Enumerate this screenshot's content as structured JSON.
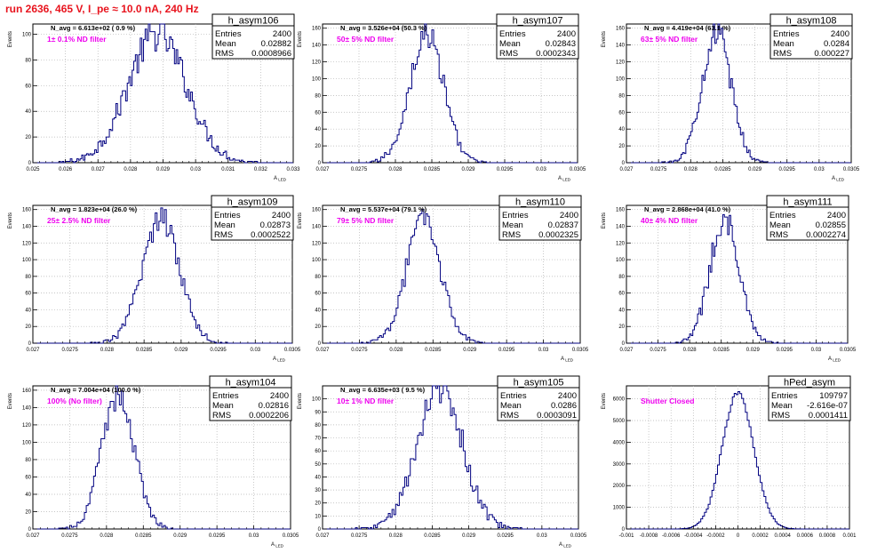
{
  "page_title": "run 2636,   465 V, I_pe ≈ 10.0 nA, 240 Hz",
  "colors": {
    "title": "#e8141e",
    "filter_label": "#ee00ee",
    "histogram": "#000080",
    "grid": "#b4b4b4"
  },
  "chart_data": [
    {
      "type": "bar",
      "name": "h_asym106",
      "title": "N_avg = 6.613e+02 ( 0.9 %)",
      "annotation": "1± 0.1% ND filter",
      "stats": {
        "entries_label": "Entries",
        "entries": "2400",
        "mean_label": "Mean",
        "mean": "0.02882",
        "rms_label": "RMS",
        "rms": "0.0008966"
      },
      "ylabel": "Events",
      "xlabel": "A_{LED}",
      "xlim": [
        0.025,
        0.033
      ],
      "ylim": [
        0,
        108
      ],
      "xticks": [
        "0.025",
        "0.026",
        "0.027",
        "0.028",
        "0.029",
        "0.03",
        "0.031",
        "0.032",
        "0.033"
      ],
      "yticks": [
        "0",
        "20",
        "40",
        "60",
        "80",
        "100"
      ],
      "mean": 0.02882,
      "rms": 0.0008966,
      "peak": 100,
      "bins": 160,
      "xrange": [
        0.025,
        0.033
      ]
    },
    {
      "type": "bar",
      "name": "h_asym107",
      "title": "N_avg = 3.526e+04 (50.3 %)",
      "annotation": "50± 5% ND filter",
      "stats": {
        "entries_label": "Entries",
        "entries": "2400",
        "mean_label": "Mean",
        "mean": "0.02843",
        "rms_label": "RMS",
        "rms": "0.0002343"
      },
      "ylabel": "Events",
      "xlabel": "A_{LED}",
      "xlim": [
        0.027,
        0.0305
      ],
      "ylim": [
        0,
        165
      ],
      "xticks": [
        "0.027",
        "0.0275",
        "0.028",
        "0.0285",
        "0.029",
        "0.0295",
        "0.03",
        "0.0305"
      ],
      "yticks": [
        "0",
        "20",
        "40",
        "60",
        "80",
        "100",
        "120",
        "140",
        "160"
      ],
      "mean": 0.02843,
      "rms": 0.0002343,
      "peak": 152,
      "bins": 140
    },
    {
      "type": "bar",
      "name": "h_asym108",
      "title": "N_avg = 4.419e+04 (63.1 %)",
      "annotation": "63± 5% ND filter",
      "stats": {
        "entries_label": "Entries",
        "entries": "2400",
        "mean_label": "Mean",
        "mean": "0.0284",
        "rms_label": "RMS",
        "rms": "0.000227"
      },
      "ylabel": "Events",
      "xlabel": "A_{LED}",
      "xlim": [
        0.027,
        0.0305
      ],
      "ylim": [
        0,
        165
      ],
      "xticks": [
        "0.027",
        "0.0275",
        "0.028",
        "0.0285",
        "0.029",
        "0.0295",
        "0.03",
        "0.0305"
      ],
      "yticks": [
        "0",
        "20",
        "40",
        "60",
        "80",
        "100",
        "120",
        "140",
        "160"
      ],
      "mean": 0.0284,
      "rms": 0.000227,
      "peak": 156,
      "bins": 140
    },
    {
      "type": "bar",
      "name": "h_asym109",
      "title": "N_avg = 1.823e+04 (26.0 %)",
      "annotation": "25± 2.5% ND filter",
      "stats": {
        "entries_label": "Entries",
        "entries": "2400",
        "mean_label": "Mean",
        "mean": "0.02873",
        "rms_label": "RMS",
        "rms": "0.0002522"
      },
      "ylabel": "Events",
      "xlabel": "A_{LED}",
      "xlim": [
        0.027,
        0.0305
      ],
      "ylim": [
        0,
        165
      ],
      "xticks": [
        "0.027",
        "0.0275",
        "0.028",
        "0.0285",
        "0.029",
        "0.0295",
        "0.03",
        "0.0305"
      ],
      "yticks": [
        "0",
        "20",
        "40",
        "60",
        "80",
        "100",
        "120",
        "140",
        "160"
      ],
      "mean": 0.02873,
      "rms": 0.0002522,
      "peak": 150,
      "bins": 140
    },
    {
      "type": "bar",
      "name": "h_asym110",
      "title": "N_avg = 5.537e+04 (79.1 %)",
      "annotation": "79± 5% ND filter",
      "stats": {
        "entries_label": "Entries",
        "entries": "2400",
        "mean_label": "Mean",
        "mean": "0.02837",
        "rms_label": "RMS",
        "rms": "0.0002325"
      },
      "ylabel": "Events",
      "xlabel": "A_{LED}",
      "xlim": [
        0.027,
        0.0305
      ],
      "ylim": [
        0,
        165
      ],
      "xticks": [
        "0.027",
        "0.0275",
        "0.028",
        "0.0285",
        "0.029",
        "0.0295",
        "0.03",
        "0.0305"
      ],
      "yticks": [
        "0",
        "20",
        "40",
        "60",
        "80",
        "100",
        "120",
        "140",
        "160"
      ],
      "mean": 0.02837,
      "rms": 0.0002325,
      "peak": 146,
      "bins": 140
    },
    {
      "type": "bar",
      "name": "h_asym111",
      "title": "N_avg = 2.868e+04 (41.0 %)",
      "annotation": "40± 4% ND filter",
      "stats": {
        "entries_label": "Entries",
        "entries": "2400",
        "mean_label": "Mean",
        "mean": "0.02855",
        "rms_label": "RMS",
        "rms": "0.0002274"
      },
      "ylabel": "Events",
      "xlabel": "A_{LED}",
      "xlim": [
        0.027,
        0.0305
      ],
      "ylim": [
        0,
        165
      ],
      "xticks": [
        "0.027",
        "0.0275",
        "0.028",
        "0.0285",
        "0.029",
        "0.0295",
        "0.03",
        "0.0305"
      ],
      "yticks": [
        "0",
        "20",
        "40",
        "60",
        "80",
        "100",
        "120",
        "140",
        "160"
      ],
      "mean": 0.02855,
      "rms": 0.0002274,
      "peak": 150,
      "bins": 140
    },
    {
      "type": "bar",
      "name": "h_asym104",
      "title": "N_avg = 7.004e+04 (100.0 %)",
      "annotation": "100% (No filter)",
      "stats": {
        "entries_label": "Entries",
        "entries": "2400",
        "mean_label": "Mean",
        "mean": "0.02816",
        "rms_label": "RMS",
        "rms": "0.0002206"
      },
      "ylabel": "Events",
      "xlabel": "A_{LED}",
      "xlim": [
        0.027,
        0.0305
      ],
      "ylim": [
        0,
        165
      ],
      "xticks": [
        "0.027",
        "0.0275",
        "0.028",
        "0.0285",
        "0.029",
        "0.0295",
        "0.03",
        "0.0305"
      ],
      "yticks": [
        "0",
        "20",
        "40",
        "60",
        "80",
        "100",
        "120",
        "140",
        "160"
      ],
      "mean": 0.02816,
      "rms": 0.0002206,
      "peak": 155,
      "bins": 140
    },
    {
      "type": "bar",
      "name": "h_asym105",
      "title": "N_avg = 6.635e+03 ( 9.5 %)",
      "annotation": "10± 1% ND filter",
      "stats": {
        "entries_label": "Entries",
        "entries": "2400",
        "mean_label": "Mean",
        "mean": "0.0286",
        "rms_label": "RMS",
        "rms": "0.0003091"
      },
      "ylabel": "Events",
      "xlabel": "A_{LED}",
      "xlim": [
        0.027,
        0.0305
      ],
      "ylim": [
        0,
        110
      ],
      "xticks": [
        "0.027",
        "0.0275",
        "0.028",
        "0.0285",
        "0.029",
        "0.0295",
        "0.03",
        "0.0305"
      ],
      "yticks": [
        "0",
        "10",
        "20",
        "30",
        "40",
        "50",
        "60",
        "70",
        "80",
        "90",
        "100"
      ],
      "mean": 0.0286,
      "rms": 0.0003091,
      "peak": 110,
      "bins": 140
    },
    {
      "type": "bar",
      "name": "hPed_asym",
      "title": "",
      "annotation": "Shutter Closed",
      "stats": {
        "entries_label": "Entries",
        "entries": "109797",
        "mean_label": "Mean",
        "mean": "-2.616e-07",
        "rms_label": "RMS",
        "rms": "0.0001411"
      },
      "ylabel": "Events",
      "xlabel": "",
      "xlim": [
        -0.001,
        0.001
      ],
      "ylim": [
        0,
        6600
      ],
      "xticks": [
        "-0.001",
        "-0.0008",
        "-0.0006",
        "-0.0004",
        "-0.0002",
        "0",
        "0.0002",
        "0.0004",
        "0.0006",
        "0.0008",
        "0.001"
      ],
      "yticks": [
        "0",
        "1000",
        "2000",
        "3000",
        "4000",
        "5000",
        "6000"
      ],
      "mean": 0.0,
      "rms": 0.0001411,
      "peak": 6300,
      "bins": 120
    }
  ]
}
